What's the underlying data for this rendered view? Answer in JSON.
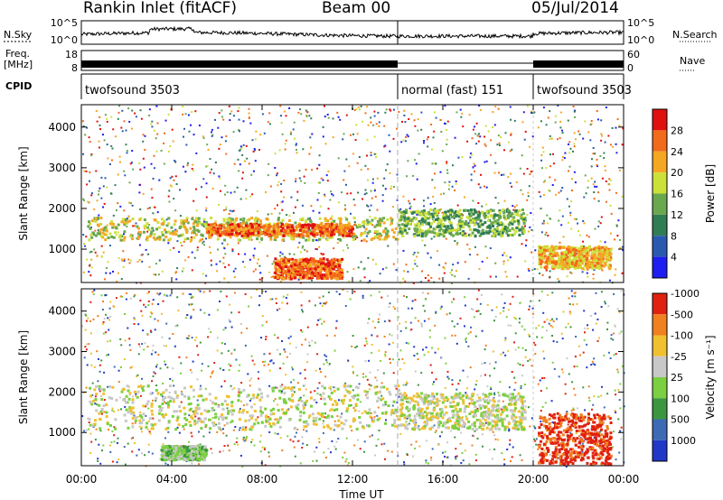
{
  "header": {
    "site": "Rankin Inlet (fitACF)",
    "beam": "Beam 00",
    "date": "05/Jul/2014"
  },
  "chart_data": {
    "type": "heatmap",
    "x_axis": {
      "label": "Time UT",
      "ticks": [
        "00:00",
        "04:00",
        "08:00",
        "12:00",
        "16:00",
        "20:00",
        "00:00"
      ],
      "range_hours": [
        0,
        24
      ]
    },
    "status_panels": {
      "nsky_label": "N.Sky",
      "nsearch_label": "N.Search",
      "noise_ticks_left": [
        "10^5",
        "10^0"
      ],
      "noise_ticks_right": [
        "10^5",
        "10^0"
      ],
      "freq_label": "Freq.",
      "freq_unit": "[MHz]",
      "freq_ticks": [
        "18",
        "8"
      ],
      "nave_label": "Nave",
      "nave_ticks": [
        "60",
        "0"
      ],
      "cpid_label": "CPID",
      "cpid_segments": [
        {
          "name": "twofsound 3503",
          "start_hour": 0,
          "end_hour": 14.0
        },
        {
          "name": "normal (fast) 151",
          "start_hour": 14.0,
          "end_hour": 20.0
        },
        {
          "name": "twofsound 3503",
          "start_hour": 20.0,
          "end_hour": 24.0
        }
      ]
    },
    "panels": [
      {
        "name": "power",
        "ylabel": "Slant Range [km]",
        "ylim": [
          180,
          4550
        ],
        "yticks": [
          1000,
          2000,
          3000,
          4000
        ],
        "colorbar_label": "Power [dB]",
        "colorbar_ticks": [
          "4",
          "8",
          "12",
          "16",
          "20",
          "24",
          "28"
        ],
        "colorbar_colors": [
          "#1e1ef0",
          "#2a5ab0",
          "#2f7d55",
          "#6aa84f",
          "#cce03a",
          "#f5a623",
          "#f26a1b",
          "#e01010"
        ]
      },
      {
        "name": "velocity",
        "ylabel": "Slant Range [km]",
        "ylim": [
          180,
          4550
        ],
        "yticks": [
          1000,
          2000,
          3000,
          4000
        ],
        "colorbar_label": "Velocity [m s⁻¹]",
        "colorbar_ticks": [
          "1000",
          "500",
          "100",
          "25",
          "-25",
          "-100",
          "-500",
          "-1000"
        ],
        "colorbar_colors": [
          "#2038c8",
          "#3c6ab4",
          "#3c9640",
          "#7ad040",
          "#c8c8c8",
          "#f0c030",
          "#f08020",
          "#e02010"
        ]
      }
    ],
    "regions": [
      {
        "t0": 0.2,
        "t1": 14,
        "r0": 1250,
        "r1": 1800,
        "panel": "power",
        "level": 4
      },
      {
        "t0": 5.5,
        "t1": 12,
        "r0": 1350,
        "r1": 1650,
        "panel": "power",
        "level": 6
      },
      {
        "t0": 14,
        "t1": 19.6,
        "r0": 1350,
        "r1": 2000,
        "panel": "power",
        "level": 3
      },
      {
        "t0": 20.2,
        "t1": 23.4,
        "r0": 550,
        "r1": 1100,
        "panel": "power",
        "level": 5
      },
      {
        "t0": 8.5,
        "t1": 11.5,
        "r0": 300,
        "r1": 800,
        "panel": "power",
        "level": 6
      },
      {
        "t0": 0.2,
        "t1": 14,
        "r0": 1100,
        "r1": 2200,
        "panel": "velocity",
        "level": 4
      },
      {
        "t0": 14,
        "t1": 19.6,
        "r0": 1100,
        "r1": 2000,
        "panel": "velocity",
        "level": 4
      },
      {
        "t0": 20.2,
        "t1": 23.4,
        "r0": 250,
        "r1": 1500,
        "panel": "velocity",
        "level": 7
      },
      {
        "t0": 3.5,
        "t1": 5.5,
        "r0": 350,
        "r1": 700,
        "panel": "velocity",
        "level": 3
      }
    ]
  }
}
